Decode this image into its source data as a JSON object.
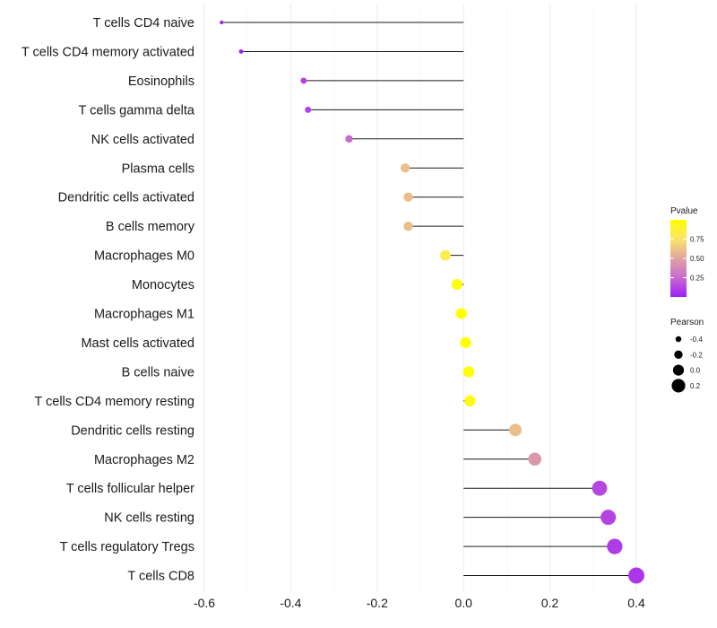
{
  "chart_data": {
    "type": "lollipop",
    "title": "",
    "xlabel": "",
    "ylabel": "",
    "xlim": [
      -0.6,
      0.4
    ],
    "x_ticks": [
      -0.6,
      -0.4,
      -0.2,
      0.0,
      0.2,
      0.4
    ],
    "x_tick_labels": [
      "-0.6",
      "-0.4",
      "-0.2",
      "0.0",
      "0.2",
      "0.4"
    ],
    "grid": true,
    "categories": [
      "T cells CD4 naive",
      "T cells CD4 memory activated",
      "Eosinophils",
      "T cells gamma delta",
      "NK cells activated",
      "Plasma cells",
      "Dendritic cells activated",
      "B cells memory",
      "Macrophages M0",
      "Monocytes",
      "Macrophages M1",
      "Mast cells activated",
      "B cells naive",
      "T cells CD4 memory resting",
      "Dendritic cells resting",
      "Macrophages M2",
      "T cells follicular helper",
      "NK cells resting",
      "T cells regulatory  Tregs ",
      "T cells CD8"
    ],
    "pearson": [
      -0.56,
      -0.515,
      -0.37,
      -0.36,
      -0.265,
      -0.135,
      -0.128,
      -0.128,
      -0.042,
      -0.015,
      -0.005,
      0.005,
      0.012,
      0.015,
      0.12,
      0.165,
      0.315,
      0.335,
      0.35,
      0.4
    ],
    "pvalue": [
      0.0,
      0.01,
      0.12,
      0.12,
      0.25,
      0.6,
      0.6,
      0.6,
      0.82,
      0.97,
      0.99,
      0.99,
      0.99,
      0.96,
      0.6,
      0.45,
      0.13,
      0.12,
      0.1,
      0.08
    ],
    "legend": {
      "color": {
        "title": "Pvalue",
        "range": [
          0.0,
          1.0
        ],
        "ticks": [
          0.25,
          0.5,
          0.75
        ],
        "tick_labels": [
          "0.25",
          "0.50",
          "0.75"
        ],
        "colors": [
          "#9e1ff5",
          "#c96ad0",
          "#e0a4a0",
          "#fbe46a",
          "#ffff00"
        ]
      },
      "size": {
        "title": "Pearson",
        "values": [
          -0.4,
          -0.2,
          0.0,
          0.2
        ],
        "labels": [
          "-0.4",
          "-0.2",
          "0.0",
          "0.2"
        ]
      },
      "position": "right"
    }
  }
}
